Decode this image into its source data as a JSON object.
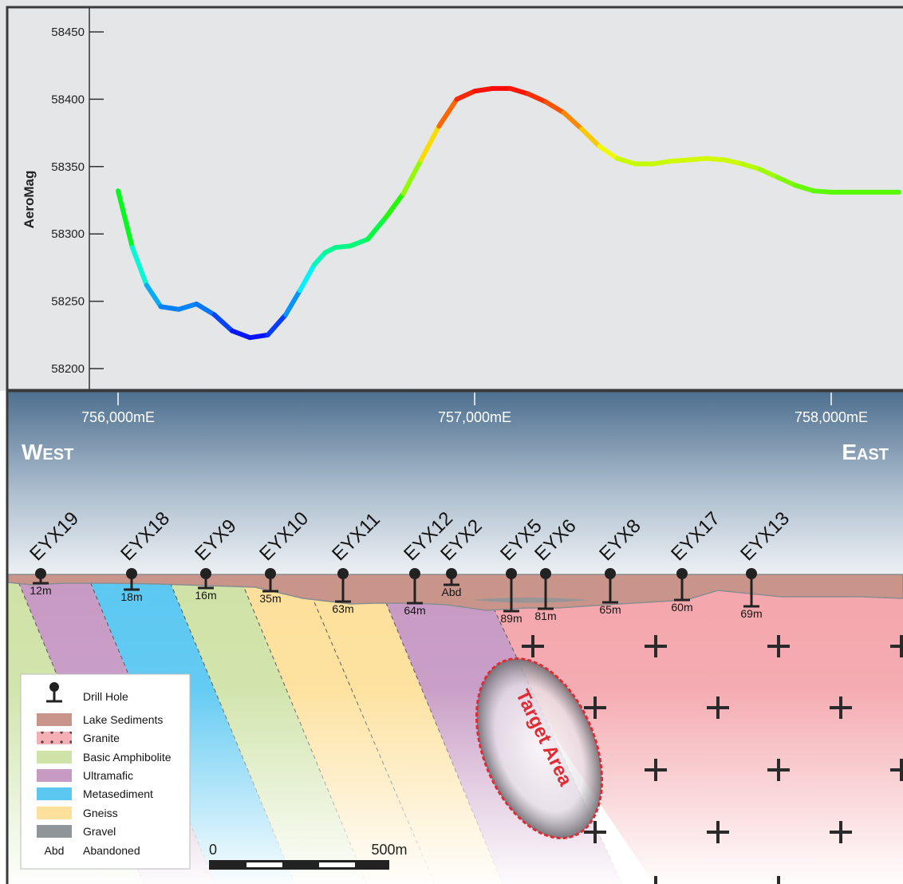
{
  "chart_data": {
    "type": "line",
    "ylabel": "AeroMag",
    "yticks": [
      58450,
      58400,
      58350,
      58300,
      58250,
      58200
    ],
    "ylim": [
      58190,
      58465
    ],
    "xlim": [
      755890,
      758200
    ],
    "xticks": [
      756000,
      757000,
      758000
    ],
    "xtick_labels": [
      "756,000mE",
      "757,000mE",
      "758,000mE"
    ],
    "series": [
      {
        "x": [
          756000,
          756040,
          756080,
          756120,
          756170,
          756220,
          756270,
          756320,
          756370,
          756420,
          756470,
          756510,
          756550,
          756580,
          756610,
          756650,
          756700,
          756750,
          756800,
          756850,
          756900,
          756950,
          757000,
          757050,
          757100,
          757150,
          757200,
          757250,
          757300,
          757350,
          757400,
          757450,
          757500,
          757550,
          757600,
          757650,
          757700,
          757750,
          757800,
          757850,
          757900,
          757950,
          758000,
          758050,
          758100,
          758150,
          758190
        ],
        "y": [
          58332,
          58290,
          58262,
          58246,
          58244,
          58248,
          58240,
          58228,
          58223,
          58225,
          58240,
          58258,
          58277,
          58286,
          58290,
          58291,
          58296,
          58312,
          58330,
          58355,
          58380,
          58400,
          58406,
          58408,
          58408,
          58404,
          58398,
          58390,
          58378,
          58365,
          58356,
          58352,
          58352,
          58354,
          58355,
          58356,
          58355,
          58352,
          58348,
          58342,
          58336,
          58332,
          58331,
          58331,
          58331,
          58331,
          58331
        ]
      }
    ]
  },
  "section": {
    "west_label": "West",
    "east_label": "East",
    "target_label": "Target Area",
    "drill_holes": [
      {
        "name": "EYX19",
        "depth": "12m"
      },
      {
        "name": "EYX18",
        "depth": "18m"
      },
      {
        "name": "EYX9",
        "depth": "16m"
      },
      {
        "name": "EYX10",
        "depth": "35m"
      },
      {
        "name": "EYX11",
        "depth": "63m"
      },
      {
        "name": "EYX12",
        "depth": "64m"
      },
      {
        "name": "EYX2",
        "depth": "Abd"
      },
      {
        "name": "EYX5",
        "depth": "89m"
      },
      {
        "name": "EYX6",
        "depth": "81m"
      },
      {
        "name": "EYX8",
        "depth": "65m"
      },
      {
        "name": "EYX17",
        "depth": "60m"
      },
      {
        "name": "EYX13",
        "depth": "69m"
      }
    ],
    "scale_bar": {
      "start_label": "0",
      "end_label": "500m"
    },
    "colors": {
      "lake_sediments": "#c9958a",
      "granite": "#f3a9ae",
      "basic_amphibolite": "#cfe3a8",
      "ultramafic": "#c79ac4",
      "metasediment": "#5cc8f2",
      "gneiss": "#fde09b",
      "gravel": "#8f9599",
      "target": "#e53a3f"
    }
  },
  "legend": {
    "items": [
      {
        "key": "drill-hole",
        "label": "Drill Hole"
      },
      {
        "key": "lake-sediments",
        "label": "Lake Sediments"
      },
      {
        "key": "granite",
        "label": "Granite"
      },
      {
        "key": "basic-amphibolite",
        "label": "Basic Amphibolite"
      },
      {
        "key": "ultramafic",
        "label": "Ultramafic"
      },
      {
        "key": "metasediment",
        "label": "Metasediment"
      },
      {
        "key": "gneiss",
        "label": "Gneiss"
      },
      {
        "key": "gravel",
        "label": "Gravel"
      },
      {
        "key": "abandoned",
        "label": "Abandoned",
        "symbol": "Abd"
      }
    ]
  }
}
